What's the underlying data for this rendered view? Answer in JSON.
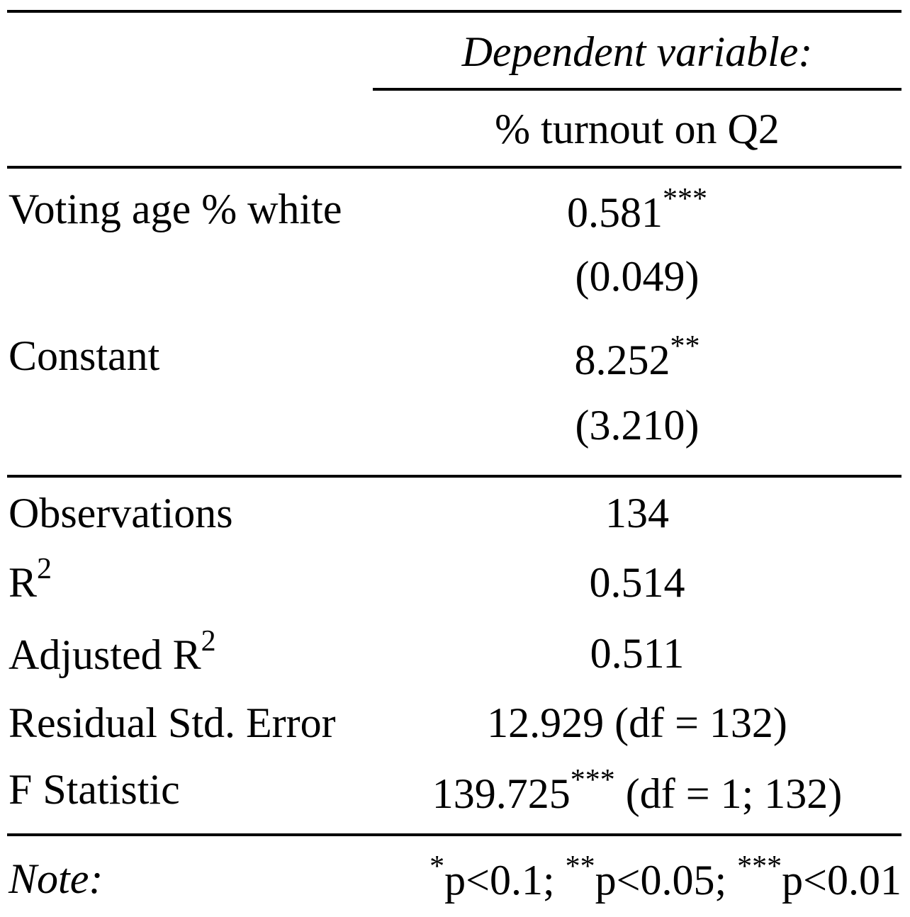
{
  "header": {
    "dependent_label": "Dependent variable:",
    "dependent_name": "% turnout on Q2"
  },
  "rows": {
    "white": {
      "label": "Voting age % white",
      "coef": "0.581",
      "stars": "***",
      "se": "(0.049)"
    },
    "constant": {
      "label": "Constant",
      "coef": "8.252",
      "stars": "**",
      "se": "(3.210)"
    }
  },
  "stats": {
    "obs": {
      "label": "Observations",
      "value": "134"
    },
    "r2": {
      "label": "R",
      "sup": "2",
      "value": "0.514"
    },
    "adj_r2": {
      "label": "Adjusted R",
      "sup": "2",
      "value": "0.511"
    },
    "rse": {
      "label": "Residual Std. Error",
      "value": "12.929 (df = 132)"
    },
    "fstat": {
      "label": "F Statistic",
      "value": "139.725",
      "stars": "***",
      "df": " (df = 1; 132)"
    }
  },
  "note": {
    "label": "Note:",
    "s1": "*",
    "p1": "p<0.1; ",
    "s2": "**",
    "p2": "p<0.05; ",
    "s3": "***",
    "p3": "p<0.01"
  }
}
